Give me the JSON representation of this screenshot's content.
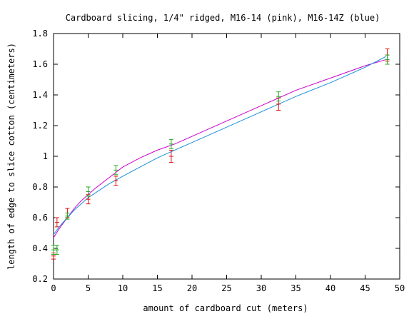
{
  "chart_data": {
    "type": "line",
    "title": "Cardboard slicing, 1/4\" ridged, M16-14 (pink), M16-14Z (blue)",
    "xlabel": "amount of cardboard cut (meters)",
    "ylabel": "length of edge to slice cotton (centimeters)",
    "xlim": [
      0,
      50
    ],
    "ylim": [
      0.2,
      1.8
    ],
    "x_ticks": [
      0,
      5,
      10,
      15,
      20,
      25,
      30,
      35,
      40,
      45,
      50
    ],
    "y_ticks": [
      0.2,
      0.4,
      0.6,
      0.8,
      1,
      1.2,
      1.4,
      1.6,
      1.8
    ],
    "x_tick_labels": [
      "0",
      "5",
      "10",
      "15",
      "20",
      "25",
      "30",
      "35",
      "40",
      "45",
      "50"
    ],
    "y_tick_labels": [
      "0.2",
      "0.4",
      "0.6",
      "0.8",
      "1",
      "1.2",
      "1.4",
      "1.6",
      "1.8"
    ],
    "grid": false,
    "legend": "none",
    "series": [
      {
        "color": "#cc00cc",
        "kind": "fit-line",
        "x": [
          0,
          1,
          2,
          3,
          4,
          5,
          6,
          8,
          10,
          12.5,
          15,
          17.5,
          20,
          25,
          30,
          35,
          40,
          45,
          48
        ],
        "y": [
          0.47,
          0.54,
          0.6,
          0.66,
          0.71,
          0.75,
          0.79,
          0.86,
          0.93,
          0.99,
          1.04,
          1.08,
          1.13,
          1.23,
          1.33,
          1.43,
          1.51,
          1.59,
          1.63
        ]
      },
      {
        "color": "#1a8fd6",
        "kind": "fit-line",
        "x": [
          0,
          1,
          2,
          3,
          4,
          5,
          6,
          8,
          10,
          12.5,
          15,
          17.5,
          20,
          25,
          30,
          35,
          40,
          45,
          48
        ],
        "y": [
          0.49,
          0.55,
          0.6,
          0.65,
          0.69,
          0.73,
          0.76,
          0.82,
          0.87,
          0.93,
          0.99,
          1.04,
          1.09,
          1.19,
          1.29,
          1.39,
          1.48,
          1.58,
          1.65
        ]
      },
      {
        "color": "#dd1111",
        "kind": "error-bars",
        "x": [
          0,
          0.5,
          2,
          5,
          9,
          17,
          32.5,
          48.2
        ],
        "y": [
          0.35,
          0.57,
          0.63,
          0.72,
          0.84,
          1.0,
          1.34,
          1.66
        ],
        "err": [
          0.02,
          0.03,
          0.03,
          0.03,
          0.03,
          0.04,
          0.04,
          0.04
        ]
      },
      {
        "color": "#22aa22",
        "kind": "error-bars",
        "x": [
          0,
          0.5,
          2,
          5,
          9,
          17,
          32.5,
          48.2
        ],
        "y": [
          0.39,
          0.39,
          0.61,
          0.77,
          0.91,
          1.08,
          1.39,
          1.63
        ],
        "err": [
          0.03,
          0.03,
          0.02,
          0.03,
          0.03,
          0.03,
          0.03,
          0.03
        ]
      }
    ]
  }
}
